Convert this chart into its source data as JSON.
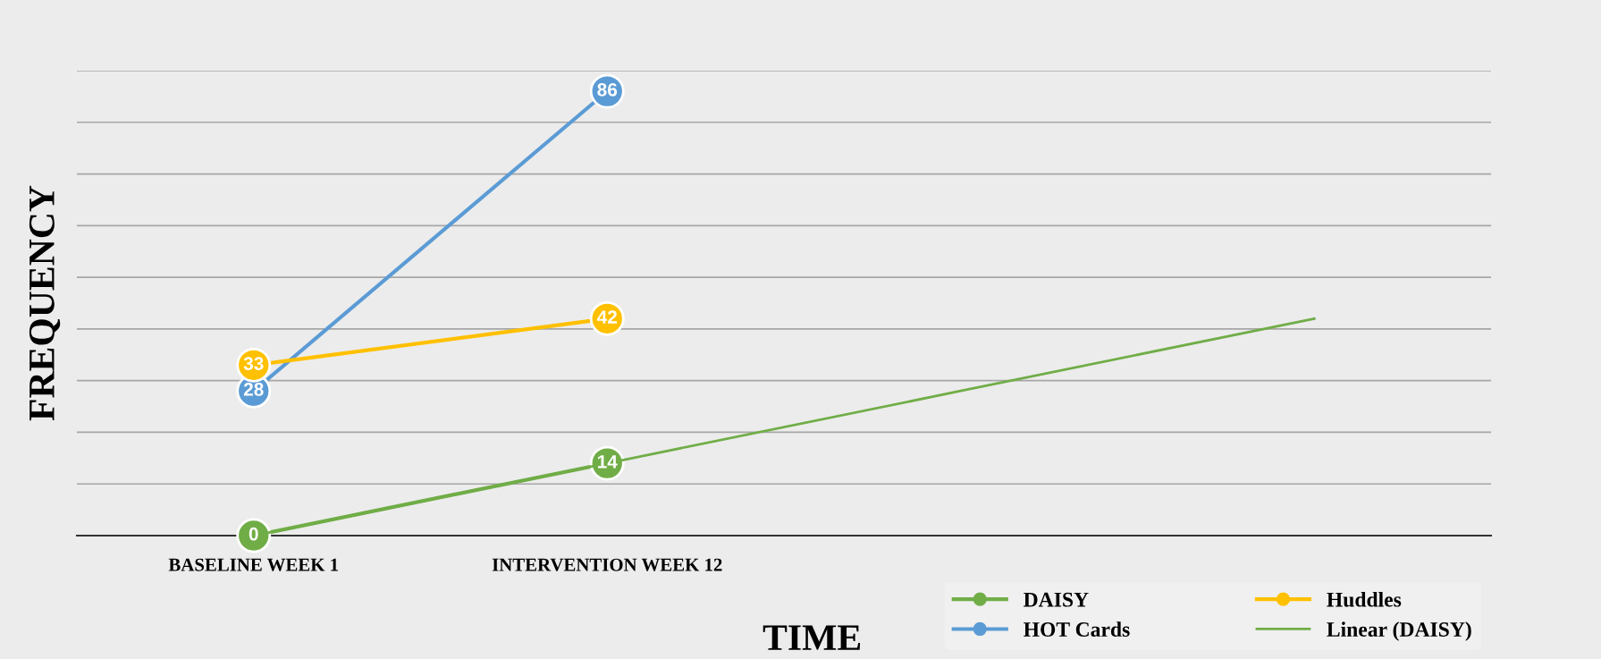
{
  "chart_data": {
    "type": "line",
    "xlabel": "TIME",
    "ylabel": "FREQUENCY",
    "categories": [
      "BASELINE WEEK 1",
      "INTERVENTION WEEK 12",
      null,
      null
    ],
    "series": [
      {
        "name": "DAISY",
        "color": "#70ad47",
        "values": [
          0,
          14,
          null,
          null
        ],
        "marker": "circle",
        "data_labels": true
      },
      {
        "name": "HOT Cards",
        "color": "#5b9bd5",
        "values": [
          28,
          86,
          null,
          null
        ],
        "marker": "circle",
        "data_labels": true
      },
      {
        "name": "Huddles",
        "color": "#ffc000",
        "values": [
          33,
          42,
          null,
          null
        ],
        "marker": "circle",
        "data_labels": true
      },
      {
        "name": "Linear (DAISY)",
        "color": "#70ad47",
        "values": [
          0,
          14,
          28,
          42
        ],
        "marker": "none"
      }
    ],
    "ylim": [
      0,
      90
    ],
    "yticks": [
      {
        "value": 0,
        "label": null
      },
      {
        "value": 10,
        "label": null
      },
      {
        "value": 20,
        "label": null
      },
      {
        "value": 30,
        "label": null
      },
      {
        "value": 40,
        "label": null
      },
      {
        "value": 50,
        "label": null
      },
      {
        "value": 60,
        "label": null
      },
      {
        "value": 70,
        "label": null
      },
      {
        "value": 80,
        "label": null
      },
      {
        "value": 90,
        "label": null
      }
    ],
    "tick_labels": "x",
    "grid": "y",
    "legend": "bottom right"
  }
}
